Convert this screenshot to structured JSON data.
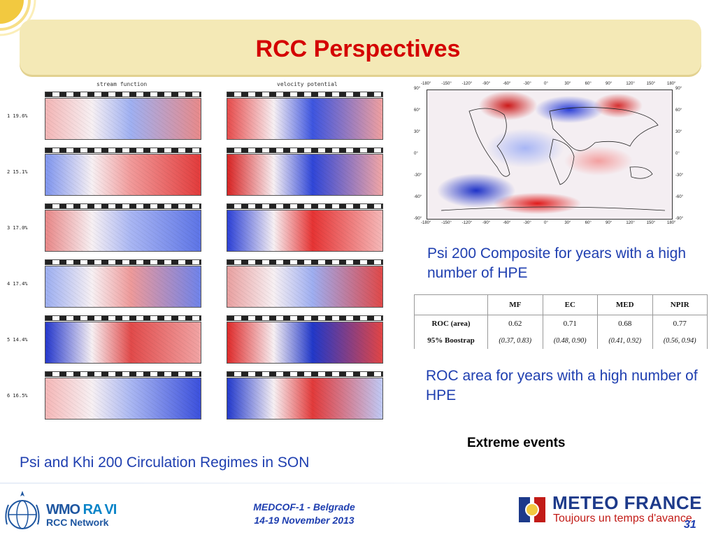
{
  "slide": {
    "title": "RCC Perspectives",
    "page_number": "31"
  },
  "regimes_figure": {
    "column_headers": [
      "stream function",
      "velocity potential"
    ],
    "row_labels": [
      "1 19.6%",
      "2 15.1%",
      "3 17.0%",
      "4 17.4%",
      "5 14.4%",
      "6 16.5%"
    ],
    "caption": "Psi and Khi 200 Circulation Regimes in SON"
  },
  "composite_map": {
    "lon_ticks": [
      "-180°",
      "-150°",
      "-120°",
      "-90°",
      "-60°",
      "-30°",
      "0°",
      "30°",
      "60°",
      "90°",
      "120°",
      "150°",
      "180°"
    ],
    "lat_ticks": [
      "90°",
      "60°",
      "30°",
      "0°",
      "-30°",
      "-60°",
      "-90°"
    ],
    "caption": "Psi 200 Composite for years with a high number of HPE"
  },
  "roc_table": {
    "columns": [
      "",
      "MF",
      "EC",
      "MED",
      "NPIR"
    ],
    "rows": [
      {
        "label": "ROC (area)",
        "values": [
          "0.62",
          "0.71",
          "0.68",
          "0.77"
        ]
      },
      {
        "label": "95% Boostrap",
        "values": [
          "(0.37, 0.83)",
          "(0.48, 0.90)",
          "(0.41, 0.92)",
          "(0.56, 0.94)"
        ]
      }
    ],
    "caption": "ROC area  for years with a high number of HPE"
  },
  "extreme_events": "Extreme events",
  "footer": {
    "wmo_main_a": "WMO",
    "wmo_main_b": "RA VI",
    "wmo_sub": "RCC Network",
    "event_line1": "MEDCOF-1 - Belgrade",
    "event_line2": "14-19 November 2013",
    "brand": "METEO FRANCE",
    "slogan": "Toujours un temps d'avance"
  },
  "colors": {
    "title_red": "#d40000",
    "caption_blue": "#1f3fb0",
    "anomaly_positive": "#d62020",
    "anomaly_negative": "#2233cc"
  }
}
